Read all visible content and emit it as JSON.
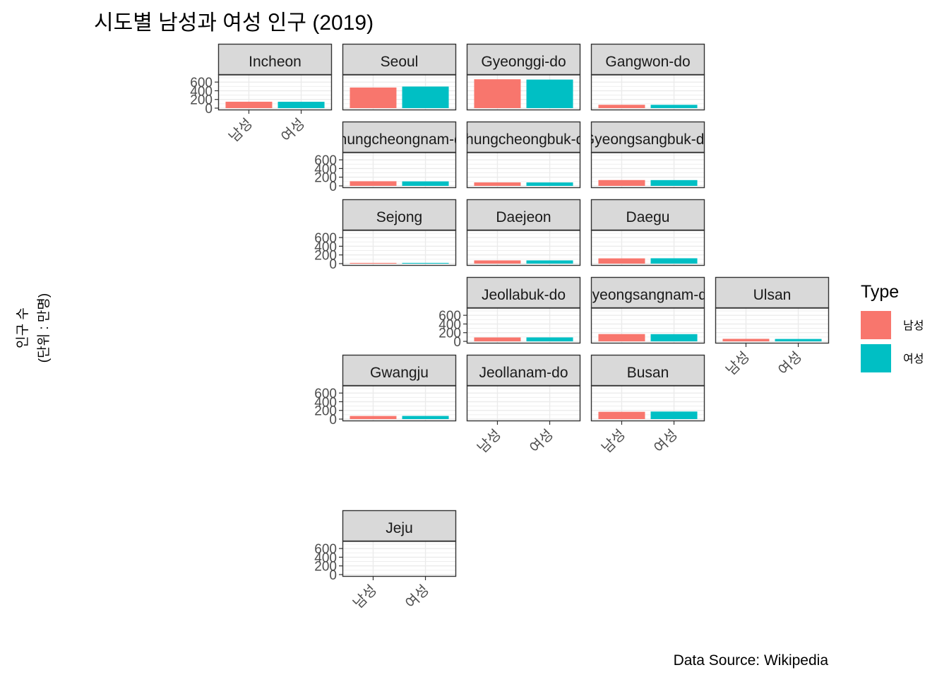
{
  "title": "시도별 남성과 여성 인구 (2019)",
  "caption": "Data Source: Wikipedia",
  "ylabel_line1": "인구 수",
  "ylabel_line2": "(단위 : 만명)",
  "legend": {
    "title": "Type",
    "items": [
      {
        "label": "남성",
        "color": "#F8766D"
      },
      {
        "label": "여성",
        "color": "#00BFC4"
      }
    ]
  },
  "chart_data": {
    "type": "bar",
    "facet": "geofacet-grid",
    "categories": [
      "남성",
      "여성"
    ],
    "yticks": [
      0,
      200,
      400,
      600
    ],
    "ylim": [
      0,
      700
    ],
    "grid": true,
    "legend_position": "right",
    "panels": [
      {
        "name": "Incheon",
        "row": 0,
        "col": 0,
        "values": [
          148,
          147
        ],
        "show_y": true,
        "show_x": true
      },
      {
        "name": "Seoul",
        "row": 0,
        "col": 1,
        "values": [
          475,
          497
        ],
        "show_y": false,
        "show_x": false
      },
      {
        "name": "Gyeonggi-do",
        "row": 0,
        "col": 2,
        "values": [
          665,
          658
        ],
        "show_y": false,
        "show_x": false
      },
      {
        "name": "Gangwon-do",
        "row": 0,
        "col": 3,
        "values": [
          77,
          76
        ],
        "show_y": false,
        "show_x": false
      },
      {
        "name": "Chungcheongnam-do",
        "row": 1,
        "col": 1,
        "values": [
          107,
          104
        ],
        "show_y": true,
        "show_x": false
      },
      {
        "name": "Chungcheongbuk-do",
        "row": 1,
        "col": 2,
        "values": [
          80,
          79
        ],
        "show_y": false,
        "show_x": false
      },
      {
        "name": "Gyeongsangbuk-do",
        "row": 1,
        "col": 3,
        "values": [
          134,
          133
        ],
        "show_y": false,
        "show_x": false
      },
      {
        "name": "Sejong",
        "row": 2,
        "col": 1,
        "values": [
          17,
          17
        ],
        "show_y": true,
        "show_x": false
      },
      {
        "name": "Daejeon",
        "row": 2,
        "col": 2,
        "values": [
          74,
          74
        ],
        "show_y": false,
        "show_x": false
      },
      {
        "name": "Daegu",
        "row": 2,
        "col": 3,
        "values": [
          121,
          123
        ],
        "show_y": false,
        "show_x": false
      },
      {
        "name": "Jeollabuk-do",
        "row": 3,
        "col": 2,
        "values": [
          90,
          91
        ],
        "show_y": true,
        "show_x": false
      },
      {
        "name": "Gyeongsangnam-do",
        "row": 3,
        "col": 3,
        "values": [
          168,
          166
        ],
        "show_y": false,
        "show_x": false
      },
      {
        "name": "Ulsan",
        "row": 3,
        "col": 4,
        "values": [
          58,
          55
        ],
        "show_y": false,
        "show_x": true
      },
      {
        "name": "Gwangju",
        "row": 4,
        "col": 1,
        "values": [
          72,
          73
        ],
        "show_y": true,
        "show_x": false
      },
      {
        "name": "Jeollanam-do",
        "row": 4,
        "col": 2,
        "values": [
          0,
          0
        ],
        "show_y": false,
        "show_x": true
      },
      {
        "name": "Busan",
        "row": 4,
        "col": 3,
        "values": [
          168,
          174
        ],
        "show_y": false,
        "show_x": true
      },
      {
        "name": "Jeju",
        "row": 6,
        "col": 1,
        "values": [
          0,
          0
        ],
        "show_y": true,
        "show_x": true
      }
    ]
  }
}
